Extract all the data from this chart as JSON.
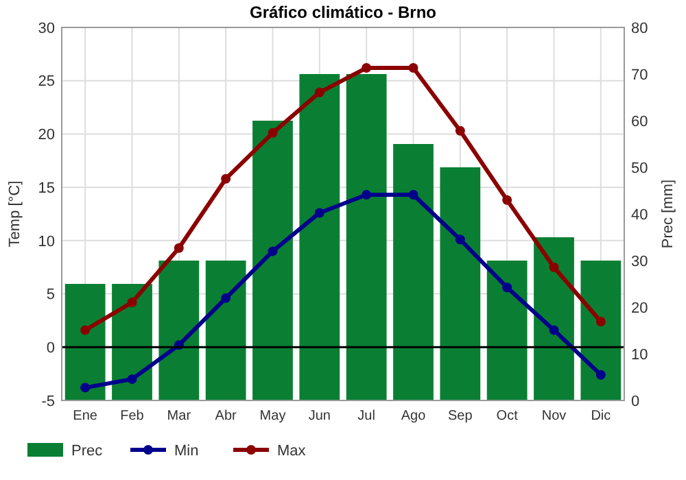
{
  "chart_data": {
    "type": "line",
    "title": "Gráfico climático - Brno",
    "ylabel": "Temp [°C]",
    "y2label": "Prec [mm]",
    "categories": [
      "Ene",
      "Feb",
      "Mar",
      "Abr",
      "May",
      "Jun",
      "Jul",
      "Ago",
      "Sep",
      "Oct",
      "Nov",
      "Dic"
    ],
    "series": [
      {
        "name": "Prec",
        "type": "bar",
        "axis": "y2",
        "color": "#0a7f33",
        "values": [
          25,
          25,
          30,
          30,
          60,
          70,
          70,
          55,
          50,
          30,
          35,
          30
        ]
      },
      {
        "name": "Min",
        "color": "#00008b",
        "values": [
          -3.8,
          -3,
          0.2,
          4.6,
          9,
          12.6,
          14.3,
          14.3,
          10.1,
          5.6,
          1.6,
          -2.6
        ]
      },
      {
        "name": "Max",
        "color": "#8b0000",
        "values": [
          1.6,
          4.2,
          9.3,
          15.8,
          20.1,
          23.9,
          26.2,
          26.2,
          20.3,
          13.8,
          7.5,
          2.4
        ]
      }
    ],
    "ylim": [
      -5,
      30
    ],
    "yticks": [
      -5,
      0,
      5,
      10,
      15,
      20,
      25,
      30
    ],
    "y2lim": [
      0,
      80
    ],
    "y2ticks": [
      0,
      10,
      20,
      30,
      40,
      50,
      60,
      70,
      80
    ],
    "ref_lines": [
      {
        "axis": "y",
        "value": 0,
        "color": "#000000"
      }
    ],
    "grid": true,
    "legend": "bottom",
    "marker": "circle",
    "line_style": "solid"
  }
}
